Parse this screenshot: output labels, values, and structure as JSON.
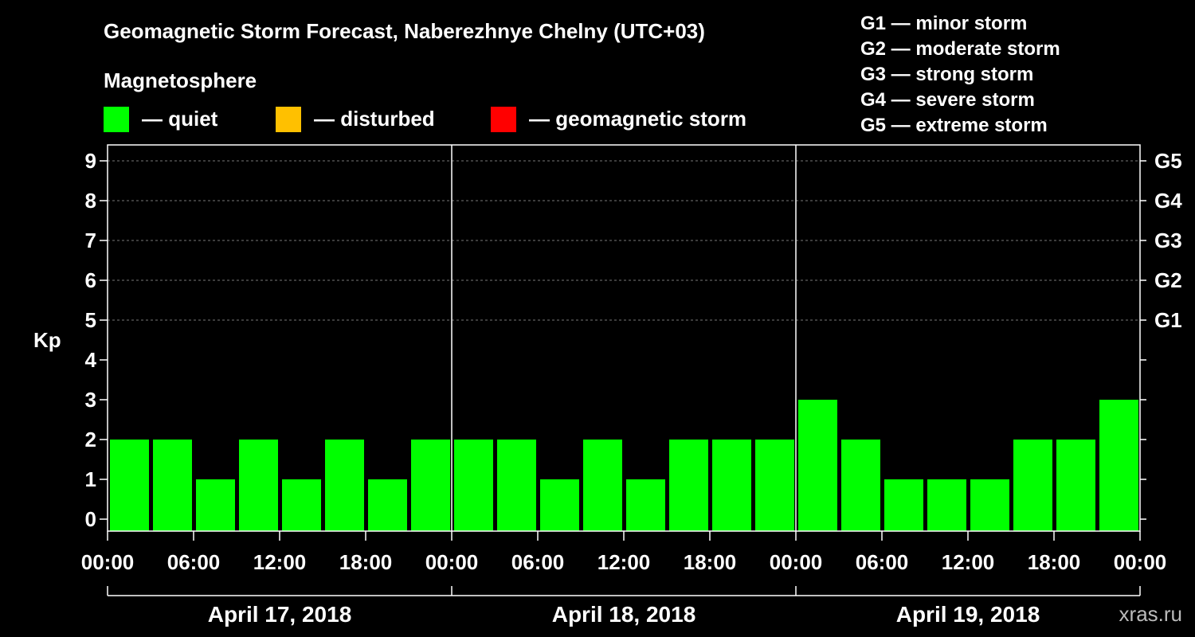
{
  "legend": {
    "title": "Geomagnetic Storm Forecast, Naberezhnye Chelny (UTC+03)",
    "subtitle": "Magnetosphere",
    "items": [
      {
        "label": "— quiet",
        "color": "#00ff00"
      },
      {
        "label": "— disturbed",
        "color": "#ffc000"
      },
      {
        "label": "— geomagnetic storm",
        "color": "#ff0000"
      }
    ],
    "storm_levels": [
      "G1 — minor storm",
      "G2 — moderate storm",
      "G3 — strong storm",
      "G4 — severe storm",
      "G5 — extreme storm"
    ],
    "credit": "xras.ru"
  },
  "chart_data": {
    "type": "bar",
    "title": "Geomagnetic Storm Forecast, Naberezhnye Chelny (UTC+03)",
    "ylabel": "Kp",
    "ylim": [
      0,
      9
    ],
    "yticks": [
      "0",
      "1",
      "2",
      "3",
      "4",
      "5",
      "6",
      "7",
      "8",
      "9"
    ],
    "right_axis_labels": [
      {
        "kp": 5,
        "label": "G1"
      },
      {
        "kp": 6,
        "label": "G2"
      },
      {
        "kp": 7,
        "label": "G3"
      },
      {
        "kp": 8,
        "label": "G4"
      },
      {
        "kp": 9,
        "label": "G5"
      }
    ],
    "xticks": [
      "00:00",
      "06:00",
      "12:00",
      "18:00",
      "00:00",
      "06:00",
      "12:00",
      "18:00",
      "00:00",
      "06:00",
      "12:00",
      "18:00",
      "00:00"
    ],
    "days": [
      "April 17, 2018",
      "April 18, 2018",
      "April 19, 2018"
    ],
    "bars_per_day": 8,
    "interval_hours": 3,
    "values": [
      2,
      2,
      1,
      2,
      1,
      2,
      1,
      2,
      2,
      2,
      1,
      2,
      1,
      2,
      2,
      2,
      3,
      2,
      1,
      1,
      1,
      2,
      2,
      3
    ],
    "bar_color": "#00ff00",
    "grid": "dashed at Kp 5-9"
  }
}
